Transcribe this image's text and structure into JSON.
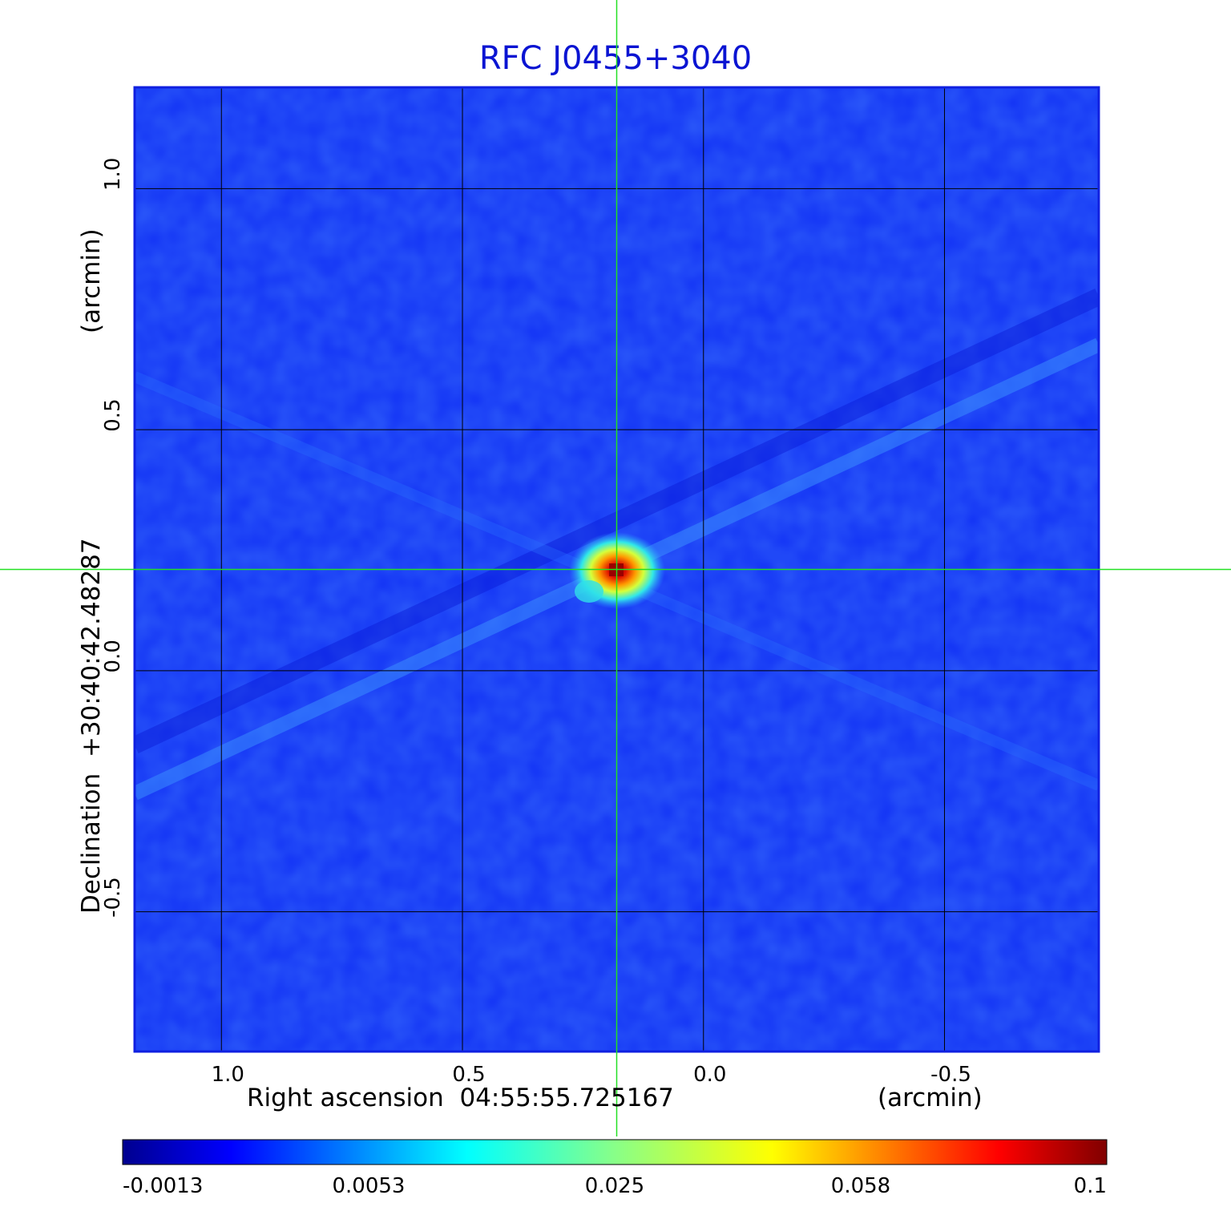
{
  "chart_data": {
    "type": "heatmap",
    "title": "RFC J0455+3040",
    "xlabel": "Right ascension  04:55:55.725167",
    "xunit": "(arcmin)",
    "ylabel": "Declination  +30:40:42.48287",
    "yunit": "(arcmin)",
    "xlim": [
      1.18,
      -0.82
    ],
    "ylim": [
      -0.79,
      1.21
    ],
    "x_reversed": true,
    "x_ticks": [
      1.0,
      0.5,
      0.0,
      -0.5
    ],
    "x_tick_labels": [
      "1.0",
      "0.5",
      "0.0",
      "-0.5"
    ],
    "y_ticks": [
      1.0,
      0.5,
      0.0,
      -0.5
    ],
    "y_tick_labels": [
      "1.0",
      "0.5",
      "0.0",
      "-0.5"
    ],
    "grid": true,
    "crosshair": {
      "x": 0.18,
      "y": 0.21
    },
    "peak": {
      "x": 0.18,
      "y": 0.21,
      "value": 0.1
    },
    "colorbar": {
      "placement": "bottom",
      "ticks": [
        -0.0013,
        0.0053,
        0.025,
        0.058,
        0.1
      ],
      "tick_labels": [
        "-0.0013",
        "0.0053",
        "0.025",
        "0.058",
        "0.1"
      ],
      "colormap": "jet"
    }
  },
  "colors": {
    "title": "#0a14d2",
    "crosshair": "#22e022",
    "grid": "#000000",
    "background": "#1232f5"
  }
}
